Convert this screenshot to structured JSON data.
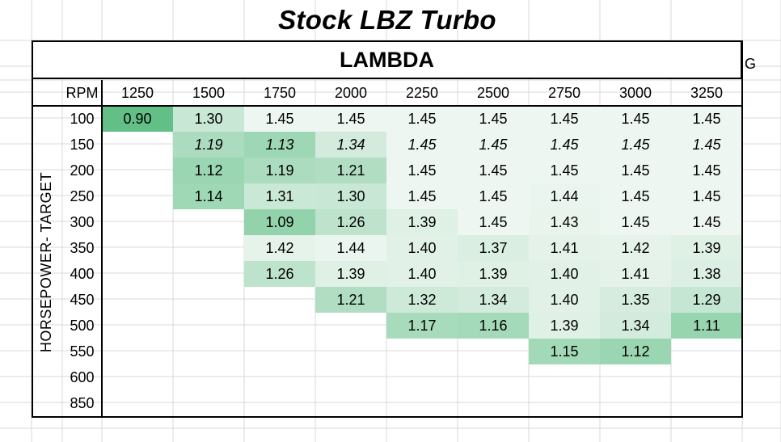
{
  "title": "Stock LBZ Turbo",
  "banner": "LAMBDA",
  "extra_column_letter": "G",
  "table": {
    "rpm_label": "RPM",
    "row_axis_label": "HORSEPOWER- TARGET",
    "rpm": [
      "1250",
      "1500",
      "1750",
      "2000",
      "2250",
      "2500",
      "2750",
      "3000",
      "3250"
    ],
    "hp": [
      "100",
      "150",
      "200",
      "250",
      "300",
      "350",
      "400",
      "450",
      "500",
      "550",
      "600",
      "850"
    ],
    "values": [
      [
        "0.90",
        "1.30",
        "1.45",
        "1.45",
        "1.45",
        "1.45",
        "1.45",
        "1.45",
        "1.45"
      ],
      [
        "",
        "1.19",
        "1.13",
        "1.34",
        "1.45",
        "1.45",
        "1.45",
        "1.45",
        "1.45"
      ],
      [
        "",
        "1.12",
        "1.19",
        "1.21",
        "1.45",
        "1.45",
        "1.45",
        "1.45",
        "1.45"
      ],
      [
        "",
        "1.14",
        "1.31",
        "1.30",
        "1.45",
        "1.45",
        "1.44",
        "1.45",
        "1.45"
      ],
      [
        "",
        "",
        "1.09",
        "1.26",
        "1.39",
        "1.45",
        "1.43",
        "1.45",
        "1.45"
      ],
      [
        "",
        "",
        "1.42",
        "1.44",
        "1.40",
        "1.37",
        "1.41",
        "1.42",
        "1.39"
      ],
      [
        "",
        "",
        "1.26",
        "1.39",
        "1.40",
        "1.39",
        "1.40",
        "1.41",
        "1.38"
      ],
      [
        "",
        "",
        "",
        "1.21",
        "1.32",
        "1.34",
        "1.40",
        "1.35",
        "1.29"
      ],
      [
        "",
        "",
        "",
        "",
        "1.17",
        "1.16",
        "1.39",
        "1.34",
        "1.11"
      ],
      [
        "",
        "",
        "",
        "",
        "",
        "",
        "1.15",
        "1.12",
        ""
      ],
      [
        "",
        "",
        "",
        "",
        "",
        "",
        "",
        "",
        ""
      ],
      [
        "",
        "",
        "",
        "",
        "",
        "",
        "",
        "",
        ""
      ]
    ],
    "italic_rows": [
      1
    ],
    "scale": {
      "min_color": "#62c087",
      "max_color": "#eef6f1"
    }
  }
}
